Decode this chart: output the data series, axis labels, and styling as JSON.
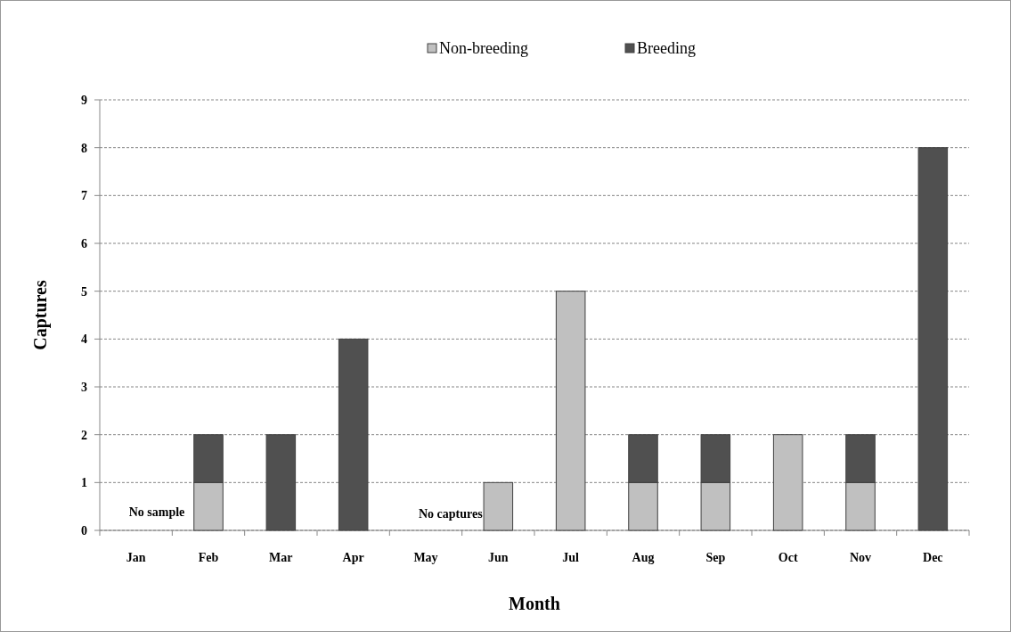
{
  "chart_data": {
    "type": "bar",
    "stacked": true,
    "xlabel": "Month",
    "ylabel": "Captures",
    "categories": [
      "Jan",
      "Feb",
      "Mar",
      "Apr",
      "May",
      "Jun",
      "Jul",
      "Aug",
      "Sep",
      "Oct",
      "Nov",
      "Dec"
    ],
    "series": [
      {
        "name": "Non-breeding",
        "color": "#c0c0c0",
        "values": [
          0,
          1,
          0,
          0,
          0,
          1,
          5,
          1,
          1,
          2,
          1,
          0
        ]
      },
      {
        "name": "Breeding",
        "color": "#505050",
        "values": [
          0,
          1,
          2,
          4,
          0,
          0,
          0,
          1,
          1,
          0,
          1,
          8
        ]
      }
    ],
    "ylim": [
      0,
      9
    ],
    "yticks": [
      0,
      1,
      2,
      3,
      4,
      5,
      6,
      7,
      8,
      9
    ],
    "grid": "y",
    "legend": "top",
    "annotations": [
      "No sample",
      "No captures"
    ]
  }
}
